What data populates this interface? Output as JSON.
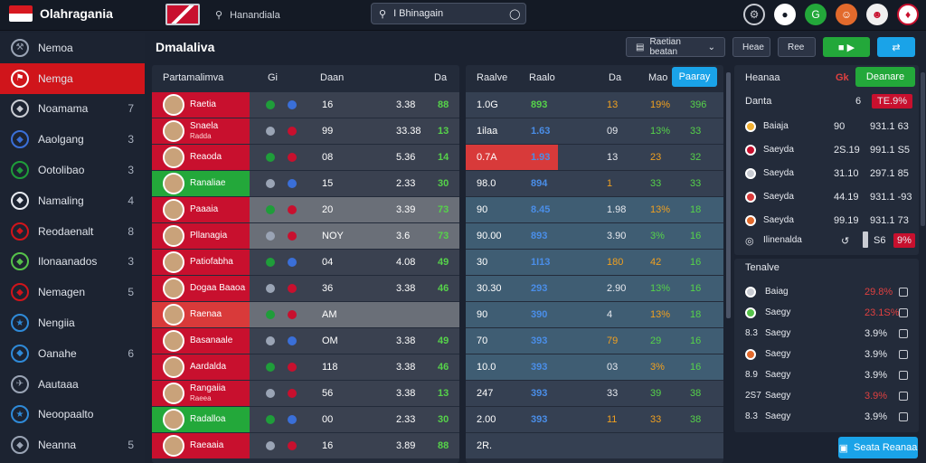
{
  "app": {
    "title": "Olahragania"
  },
  "header": {
    "search_label": "Hanandiala",
    "search_value": "I Bhinagain"
  },
  "sidebar": {
    "items": [
      {
        "label": "Nemoa",
        "count": "",
        "icon": "wrench-icon",
        "color": "#9aa4b5"
      },
      {
        "label": "Nemga",
        "count": "",
        "icon": "flag-icon",
        "color": "#ffffff",
        "active": true
      },
      {
        "label": "Noamama",
        "count": "7",
        "icon": "club-icon",
        "color": "#c9ccd3"
      },
      {
        "label": "Aaolgang",
        "count": "3",
        "icon": "club-icon",
        "color": "#3a6fd8"
      },
      {
        "label": "Ootolibao",
        "count": "3",
        "icon": "club-icon",
        "color": "#1f9d3a"
      },
      {
        "label": "Namaling",
        "count": "4",
        "icon": "club-icon",
        "color": "#e6e9ef"
      },
      {
        "label": "Reodaenalt",
        "count": "8",
        "icon": "club-icon",
        "color": "#d0151b"
      },
      {
        "label": "Ilonaanados",
        "count": "3",
        "icon": "club-icon",
        "color": "#56c24a"
      },
      {
        "label": "Nemagen",
        "count": "5",
        "icon": "club-icon",
        "color": "#d0151b"
      },
      {
        "label": "Nengiia",
        "count": "",
        "icon": "star-icon",
        "color": "#2f8ad8"
      },
      {
        "label": "Oanahe",
        "count": "6",
        "icon": "club-icon",
        "color": "#2f8ad8"
      },
      {
        "label": "Aautaaa",
        "count": "",
        "icon": "plane-icon",
        "color": "#9aa4b5"
      },
      {
        "label": "Neoopaalto",
        "count": "",
        "icon": "star-icon",
        "color": "#2f8ad8"
      },
      {
        "label": "Neanna",
        "count": "5",
        "icon": "shield-icon",
        "color": "#9aa4b5"
      }
    ]
  },
  "main": {
    "title": "Dmalaliva",
    "filter_label": "Raetian beatan",
    "sort_label": "Heae",
    "view_label": "Ree",
    "left_table": {
      "headers": [
        "Partamalimva",
        "Gi",
        "Daan",
        "Da"
      ],
      "rows": [
        {
          "name": "Raetia",
          "sub": "",
          "a": "16",
          "b": "3.38",
          "c": "88",
          "color": "#c8102e",
          "dim": false
        },
        {
          "name": "Snaela",
          "sub": "Radda",
          "a": "99",
          "b": "33.38",
          "c": "13",
          "color": "#c8102e",
          "dim": false
        },
        {
          "name": "Reaoda",
          "sub": "",
          "a": "08",
          "b": "5.36",
          "c": "14",
          "color": "#c8102e",
          "dim": false
        },
        {
          "name": "Ranaliae",
          "sub": "",
          "a": "15",
          "b": "2.33",
          "c": "30",
          "color": "#23a83a",
          "dim": false
        },
        {
          "name": "Paaaia",
          "sub": "",
          "a": "20",
          "b": "3.39",
          "c": "73",
          "color": "#c8102e",
          "dim": true
        },
        {
          "name": "Pllanagia",
          "sub": "",
          "a": "NOY",
          "b": "3.6",
          "c": "73",
          "color": "#c8102e",
          "dim": true
        },
        {
          "name": "Patiofabha",
          "sub": "",
          "a": "04",
          "b": "4.08",
          "c": "49",
          "color": "#c8102e",
          "dim": false
        },
        {
          "name": "Dogaa Baaoa",
          "sub": "",
          "a": "36",
          "b": "3.38",
          "c": "46",
          "color": "#c8102e",
          "dim": false
        },
        {
          "name": "Raenaa",
          "sub": "",
          "a": "AM",
          "b": "",
          "c": "",
          "color": "#d93a3a",
          "dim": true
        },
        {
          "name": "Basanaale",
          "sub": "",
          "a": "OM",
          "b": "3.38",
          "c": "49",
          "color": "#c8102e",
          "dim": false
        },
        {
          "name": "Aardalda",
          "sub": "",
          "a": "118",
          "b": "3.38",
          "c": "46",
          "color": "#c8102e",
          "dim": false
        },
        {
          "name": "Rangaiia",
          "sub": "Raeea",
          "a": "56",
          "b": "3.38",
          "c": "13",
          "color": "#c8102e",
          "dim": false
        },
        {
          "name": "Radalloa",
          "sub": "",
          "a": "00",
          "b": "2.33",
          "c": "30",
          "color": "#23a83a",
          "dim": false
        },
        {
          "name": "Raeaaia",
          "sub": "",
          "a": "16",
          "b": "3.89",
          "c": "88",
          "color": "#c8102e",
          "dim": false
        }
      ]
    },
    "mid_table": {
      "headers": [
        "Raalve",
        "Raalo",
        "Da",
        "Mao"
      ],
      "action_label": "Paaray",
      "rows": [
        {
          "a": "1.0G",
          "b": "893",
          "c": "13",
          "d": "19%",
          "e": "396"
        },
        {
          "a": "1ilaa",
          "b": "1.63",
          "c": "09",
          "d": "13%",
          "e": "33"
        },
        {
          "a": "0.7A",
          "b": "1.93",
          "c": "13",
          "d": "23",
          "e": "32"
        },
        {
          "a": "98.0",
          "b": "894",
          "c": "1",
          "d": "33",
          "e": "33"
        },
        {
          "a": "90",
          "b": "8.45",
          "c": "1.98",
          "d": "13%",
          "e": "18"
        },
        {
          "a": "90.00",
          "b": "893",
          "c": "3.90",
          "d": "3%",
          "e": "16"
        },
        {
          "a": "30",
          "b": "1I13",
          "c": "180",
          "d": "42",
          "e": "16"
        },
        {
          "a": "30.30",
          "b": "293",
          "c": "2.90",
          "d": "13%",
          "e": "16"
        },
        {
          "a": "90",
          "b": "390",
          "c": "4",
          "d": "13%",
          "e": "18"
        },
        {
          "a": "70",
          "b": "393",
          "c": "79",
          "d": "29",
          "e": "16"
        },
        {
          "a": "10.0",
          "b": "393",
          "c": "03",
          "d": "3%",
          "e": "16"
        },
        {
          "a": "247",
          "b": "393",
          "c": "33",
          "d": "39",
          "e": "38"
        },
        {
          "a": "2.00",
          "b": "393",
          "c": "11",
          "d": "33",
          "e": "38"
        },
        {
          "a": "2R.",
          "b": "",
          "c": "",
          "d": "",
          "e": ""
        }
      ]
    },
    "right_top": {
      "title": "Heanaa",
      "badge": "Gk",
      "action_label": "Deanare",
      "subtitle": "Danta",
      "sub_value": "6",
      "sub_badge": "TE.9%",
      "rows": [
        {
          "name": "Baiaja",
          "a": "90",
          "b": "931.1 63",
          "color": "#f2b134"
        },
        {
          "name": "Saeyda",
          "a": "2S.19",
          "b": "991.1 S5",
          "color": "#c8102e"
        },
        {
          "name": "Saeyda",
          "a": "31.10",
          "b": "297.1 85",
          "color": "#c9ccd3"
        },
        {
          "name": "Saeyda",
          "a": "44.19",
          "b": "931.1 -93",
          "color": "#d93a3a"
        },
        {
          "name": "Saeyda",
          "a": "99.19",
          "b": "931.1 73",
          "color": "#e26a2c"
        }
      ],
      "footer_label": "Ilinenalda",
      "footer_value": "S6",
      "footer_badge": "9%"
    },
    "right_bottom": {
      "title": "Tenalve",
      "rows": [
        {
          "name": "Baiag",
          "lead": "",
          "val": "29.8%",
          "color": "#c9ccd3",
          "red": true
        },
        {
          "name": "Saegy",
          "lead": "",
          "val": "23.1S%",
          "color": "#56c24a",
          "red": true
        },
        {
          "name": "Saegy",
          "lead": "8.3",
          "val": "3.9%",
          "color": "#f2b134",
          "red": false
        },
        {
          "name": "Saegy",
          "lead": "",
          "val": "3.9%",
          "color": "#e26a2c",
          "red": false
        },
        {
          "name": "Saegy",
          "lead": "8.9",
          "val": "3.9%",
          "color": "#c9ccd3",
          "red": false
        },
        {
          "name": "Saegy",
          "lead": "2S7",
          "val": "3.9%",
          "color": "#c8102e",
          "red": true
        },
        {
          "name": "Saegy",
          "lead": "8.3",
          "val": "3.9%",
          "color": "#c9ccd3",
          "red": false
        }
      ],
      "action_label": "Seata Reanaa"
    }
  }
}
